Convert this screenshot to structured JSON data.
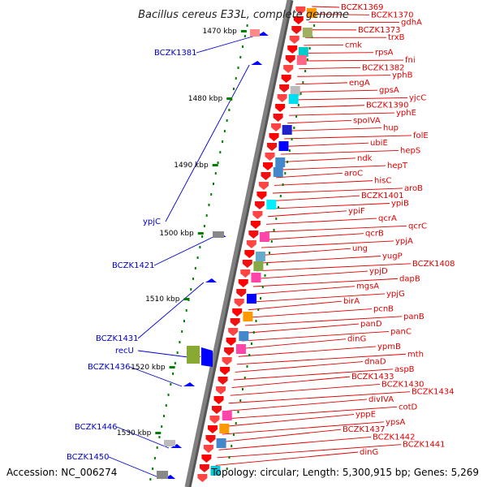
{
  "title": "Bacillus cereus E33L, complete genome",
  "accession": "Accession: NC_006274",
  "topology": "Topology: circular; Length: 5,300,915 bp; Genes: 5,269",
  "colors": {
    "forward_gene": "#ff0000",
    "reverse_gene": "#0000ff",
    "forward_label": "#e00000",
    "reverse_label": "#0000cc",
    "backbone": "#808080",
    "tick": "#008000"
  },
  "ticks": [
    "1470 kbp",
    "1480 kbp",
    "1490 kbp",
    "1500 kbp",
    "1510 kbp",
    "1520 kbp",
    "1530 kbp"
  ],
  "forward_labels": [
    "BCZK1369",
    "BCZK1370",
    "gdhA",
    "BCZK1373",
    "trxB",
    "cmk",
    "rpsA",
    "fni",
    "BCZK1382",
    "yphB",
    "engA",
    "gpsA",
    "yjcC",
    "BCZK1390",
    "yphE",
    "spoIVA",
    "hup",
    "folE",
    "ubiE",
    "hepS",
    "ndk",
    "hepT",
    "aroC",
    "hisC",
    "aroB",
    "BCZK1401",
    "ypiB",
    "ypiF",
    "qcrA",
    "qcrC",
    "qcrB",
    "ypjA",
    "ung",
    "yugP",
    "BCZK1408",
    "ypjD",
    "dapB",
    "mgsA",
    "ypjG",
    "birA",
    "pcnB",
    "panB",
    "panD",
    "panC",
    "dinG",
    "ypmB",
    "mth",
    "dnaD",
    "aspB",
    "BCZK1433",
    "BCZK1430",
    "BCZK1434",
    "divIVA",
    "cotD",
    "yppE",
    "ypsA",
    "BCZK1437",
    "BCZK1442",
    "BCZK1441",
    "dinG"
  ],
  "reverse_labels": [
    "BCZK1381",
    "ypjC",
    "BCZK1421",
    "BCZK1431",
    "recU",
    "BCZK1436",
    "BCZK1446",
    "BCZK1450"
  ]
}
